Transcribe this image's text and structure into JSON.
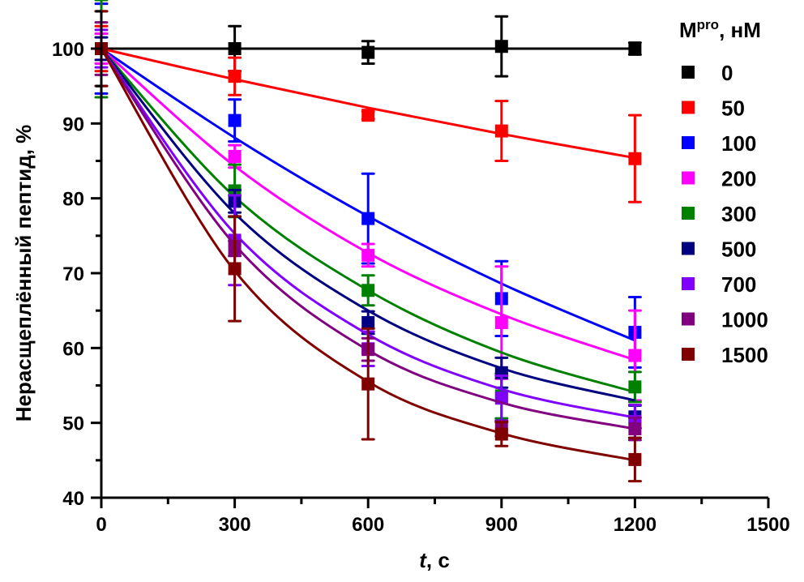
{
  "chart_data": {
    "type": "scatter",
    "title": "",
    "xlabel_italic": "t",
    "xlabel_rest": ", с",
    "ylabel": "Нерасщеплённый пептид, %",
    "xlim": [
      0,
      1500
    ],
    "ylim": [
      40,
      105
    ],
    "x_ticks": [
      0,
      300,
      600,
      900,
      1200,
      1500
    ],
    "x_minor_step": 150,
    "y_ticks": [
      40,
      50,
      60,
      70,
      80,
      90,
      100
    ],
    "y_minor_step": 5,
    "grid": false,
    "legend": {
      "title_main": "M",
      "title_sup": "pro",
      "title_rest": ", нМ",
      "placement": "right"
    },
    "x": [
      0,
      300,
      600,
      900,
      1200
    ],
    "series": [
      {
        "name": "0",
        "color": "#000000",
        "values": [
          100,
          100,
          99.5,
          100.3,
          100
        ],
        "errors": [
          5,
          3,
          1.5,
          4,
          0.8
        ],
        "fit": [
          100,
          100,
          100,
          100,
          100
        ]
      },
      {
        "name": "50",
        "color": "#ff0000",
        "values": [
          100,
          96.3,
          91.1,
          89,
          85.3
        ],
        "errors": [
          3,
          2.5,
          0.5,
          4,
          5.8
        ],
        "fit": [
          100,
          95.9,
          92.1,
          88.6,
          85.4
        ]
      },
      {
        "name": "100",
        "color": "#0000ff",
        "values": [
          100,
          90.4,
          77.3,
          66.6,
          62.1
        ],
        "errors": [
          6,
          2.8,
          6,
          5,
          4.7
        ],
        "fit": [
          100,
          88.1,
          77.6,
          68.6,
          61
        ]
      },
      {
        "name": "200",
        "color": "#ff00ff",
        "values": [
          100,
          85.6,
          72.4,
          63.4,
          59
        ],
        "errors": [
          2,
          1.5,
          1.5,
          7.5,
          6
        ],
        "fit": [
          100,
          84.3,
          72.7,
          64.5,
          58.4
        ]
      },
      {
        "name": "300",
        "color": "#008000",
        "values": [
          100,
          81,
          67.7,
          53.6,
          54.8
        ],
        "errors": [
          6.5,
          3.5,
          2,
          3,
          2
        ],
        "fit": [
          100,
          80.2,
          67.7,
          59.4,
          54.1
        ]
      },
      {
        "name": "500",
        "color": "#000080",
        "values": [
          100,
          79.6,
          63.4,
          56.7,
          50.8
        ],
        "errors": [
          1.5,
          1.5,
          1.5,
          2,
          1.5
        ],
        "fit": [
          100,
          78,
          65,
          57.3,
          53
        ]
      },
      {
        "name": "700",
        "color": "#8000ff",
        "values": [
          100,
          74.4,
          59.9,
          53.3,
          50.2
        ],
        "errors": [
          2.5,
          6,
          2.3,
          3,
          2.2
        ],
        "fit": [
          100,
          75.3,
          61.8,
          54.5,
          50.7
        ]
      },
      {
        "name": "1000",
        "color": "#800080",
        "values": [
          100,
          73.3,
          59.8,
          49.2,
          49.2
        ],
        "errors": [
          3.5,
          1,
          1.5,
          1,
          1.5
        ],
        "fit": [
          100,
          73.8,
          59.7,
          52.7,
          49.2
        ]
      },
      {
        "name": "1500",
        "color": "#800000",
        "values": [
          100,
          70.6,
          55.2,
          48.5,
          45.1
        ],
        "errors": [
          5,
          7,
          7.4,
          1.6,
          2.9
        ],
        "fit": [
          100,
          70.3,
          55.5,
          48.6,
          45
        ]
      }
    ]
  }
}
